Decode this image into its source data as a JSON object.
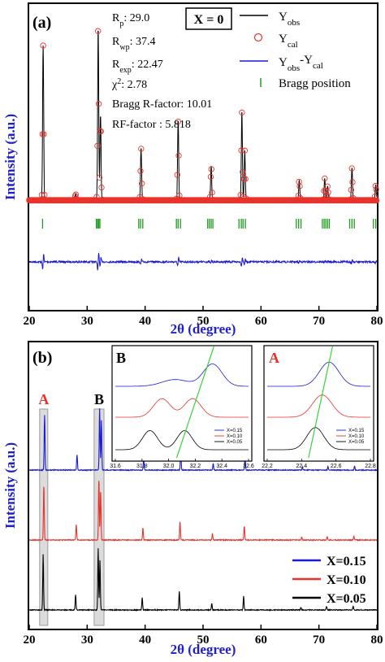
{
  "chart_data": [
    {
      "panel": "(a)",
      "type": "line",
      "xlabel": "2θ (degree)",
      "ylabel": "Intensity (a.u.)",
      "xlim": [
        20,
        80
      ],
      "xticks": [
        "20",
        "30",
        "40",
        "50",
        "60",
        "70",
        "80"
      ],
      "box_label": "X = 0",
      "stats": [
        {
          "name": "R",
          "sub": "p",
          "value": "29.0"
        },
        {
          "name": "R",
          "sub": "wp",
          "value": "37.4"
        },
        {
          "name": "R",
          "sub": "exp",
          "value": "22.47"
        },
        {
          "name": "χ",
          "sup": "2",
          "value": "2.78"
        },
        {
          "name": "Bragg R-factor:",
          "value": "10.01"
        },
        {
          "name": "RF-factor",
          "value": ": 5.818"
        }
      ],
      "legend": [
        {
          "name": "Y",
          "sub": "obs",
          "color": "#000000",
          "marker": "line"
        },
        {
          "name": "Y",
          "sub": "cal",
          "color": "#e8332d",
          "marker": "circle"
        },
        {
          "name": "Y",
          "sub": "obs",
          "suffix": "-Y",
          "sub2": "cal",
          "color": "#1a1ad6",
          "marker": "line"
        },
        {
          "name": "Bragg position",
          "color": "#1f9e1f",
          "marker": "tick"
        }
      ],
      "peaks": [
        {
          "x": 22.4,
          "h": 1.0
        },
        {
          "x": 28.0,
          "h": 0.04
        },
        {
          "x": 31.9,
          "h": 1.12
        },
        {
          "x": 32.3,
          "h": 0.55
        },
        {
          "x": 39.3,
          "h": 0.34
        },
        {
          "x": 45.7,
          "h": 0.52
        },
        {
          "x": 51.4,
          "h": 0.22
        },
        {
          "x": 56.7,
          "h": 0.58
        },
        {
          "x": 57.2,
          "h": 0.32
        },
        {
          "x": 66.6,
          "h": 0.13
        },
        {
          "x": 71.0,
          "h": 0.14
        },
        {
          "x": 71.5,
          "h": 0.09
        },
        {
          "x": 75.7,
          "h": 0.21
        },
        {
          "x": 79.8,
          "h": 0.1
        }
      ],
      "bragg_positions": [
        22.3,
        31.6,
        31.8,
        32.0,
        32.2,
        38.9,
        39.2,
        39.6,
        45.4,
        45.7,
        46.1,
        50.8,
        51.1,
        51.4,
        51.7,
        56.2,
        56.6,
        56.9,
        57.3,
        66.1,
        66.5,
        66.9,
        70.6,
        70.9,
        71.2,
        71.5,
        71.8,
        75.3,
        75.7,
        76.1,
        79.4,
        79.8
      ]
    },
    {
      "panel": "(b)",
      "type": "line",
      "xlabel": "2θ (degree)",
      "ylabel": "Intensity (a.u.)",
      "xlim": [
        20,
        80
      ],
      "xticks": [
        "20",
        "30",
        "40",
        "50",
        "60",
        "70",
        "80"
      ],
      "regions": [
        {
          "label": "A",
          "x": [
            21.8,
            23.2
          ]
        },
        {
          "label": "B",
          "x": [
            31.2,
            32.9
          ]
        }
      ],
      "peaks": [
        {
          "x": 22.4,
          "h": 1.0
        },
        {
          "x": 28.0,
          "h": 0.28
        },
        {
          "x": 31.9,
          "h": 1.12
        },
        {
          "x": 32.2,
          "h": 0.9
        },
        {
          "x": 39.5,
          "h": 0.22
        },
        {
          "x": 45.9,
          "h": 0.34
        },
        {
          "x": 51.5,
          "h": 0.12
        },
        {
          "x": 57.0,
          "h": 0.25
        },
        {
          "x": 66.9,
          "h": 0.05
        },
        {
          "x": 71.3,
          "h": 0.06
        },
        {
          "x": 75.9,
          "h": 0.07
        }
      ],
      "series": [
        {
          "name": "X=0.15",
          "color": "#1a1ad6",
          "shift": 0.25
        },
        {
          "name": "X=0.10",
          "color": "#e8332d",
          "shift": 0.12
        },
        {
          "name": "X=0.05",
          "color": "#000000",
          "shift": 0.0
        }
      ],
      "insets": [
        {
          "label": "B",
          "label_color": "#000000",
          "xlim": [
            31.6,
            32.6
          ],
          "xticks": [
            "31.6",
            "31.8",
            "32.0",
            "32.2",
            "32.4",
            "32.6"
          ],
          "legend": [
            "X=0.15",
            "X=0.10",
            "X=0.05"
          ]
        },
        {
          "label": "A",
          "label_color": "#e8332d",
          "xlim": [
            22.2,
            22.8
          ],
          "xticks": [
            "22.2",
            "22.4",
            "22.6",
            "22.8"
          ],
          "legend": [
            "X=0.15",
            "X=0.10",
            "X=0.05"
          ]
        }
      ]
    }
  ]
}
